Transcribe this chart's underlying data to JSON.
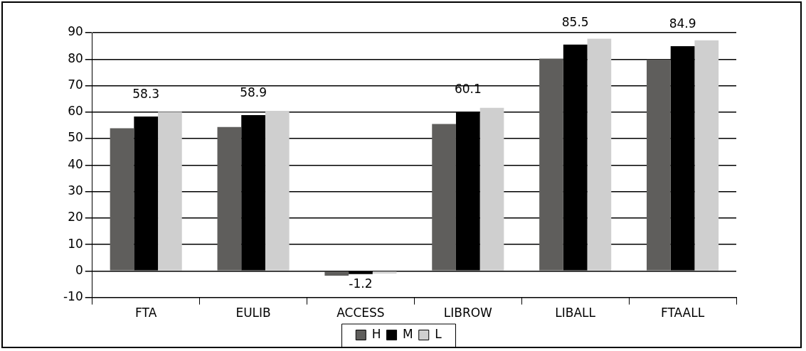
{
  "chart_data": {
    "type": "bar",
    "categories": [
      "FTA",
      "EULIB",
      "ACCESS",
      "LIBROW",
      "LIBALL",
      "FTAALL"
    ],
    "series": [
      {
        "name": "H",
        "color": "#5f5e5c",
        "values": [
          53.9,
          54.4,
          -1.8,
          55.5,
          80.2,
          79.9
        ]
      },
      {
        "name": "M",
        "color": "#000000",
        "values": [
          58.3,
          58.9,
          -1.2,
          60.1,
          85.5,
          84.9
        ],
        "value_labels": [
          "58.3",
          "58.9",
          "-1.2",
          "60.1",
          "85.5",
          "84.9"
        ]
      },
      {
        "name": "L",
        "color": "#cfcfcf",
        "values": [
          60.1,
          60.5,
          -1.0,
          61.6,
          87.7,
          87.1
        ]
      }
    ],
    "ylim": [
      -10,
      90
    ],
    "yticks": [
      -10,
      0,
      10,
      20,
      30,
      40,
      50,
      60,
      70,
      80,
      90
    ],
    "grid": "y",
    "legend": "bottom"
  }
}
